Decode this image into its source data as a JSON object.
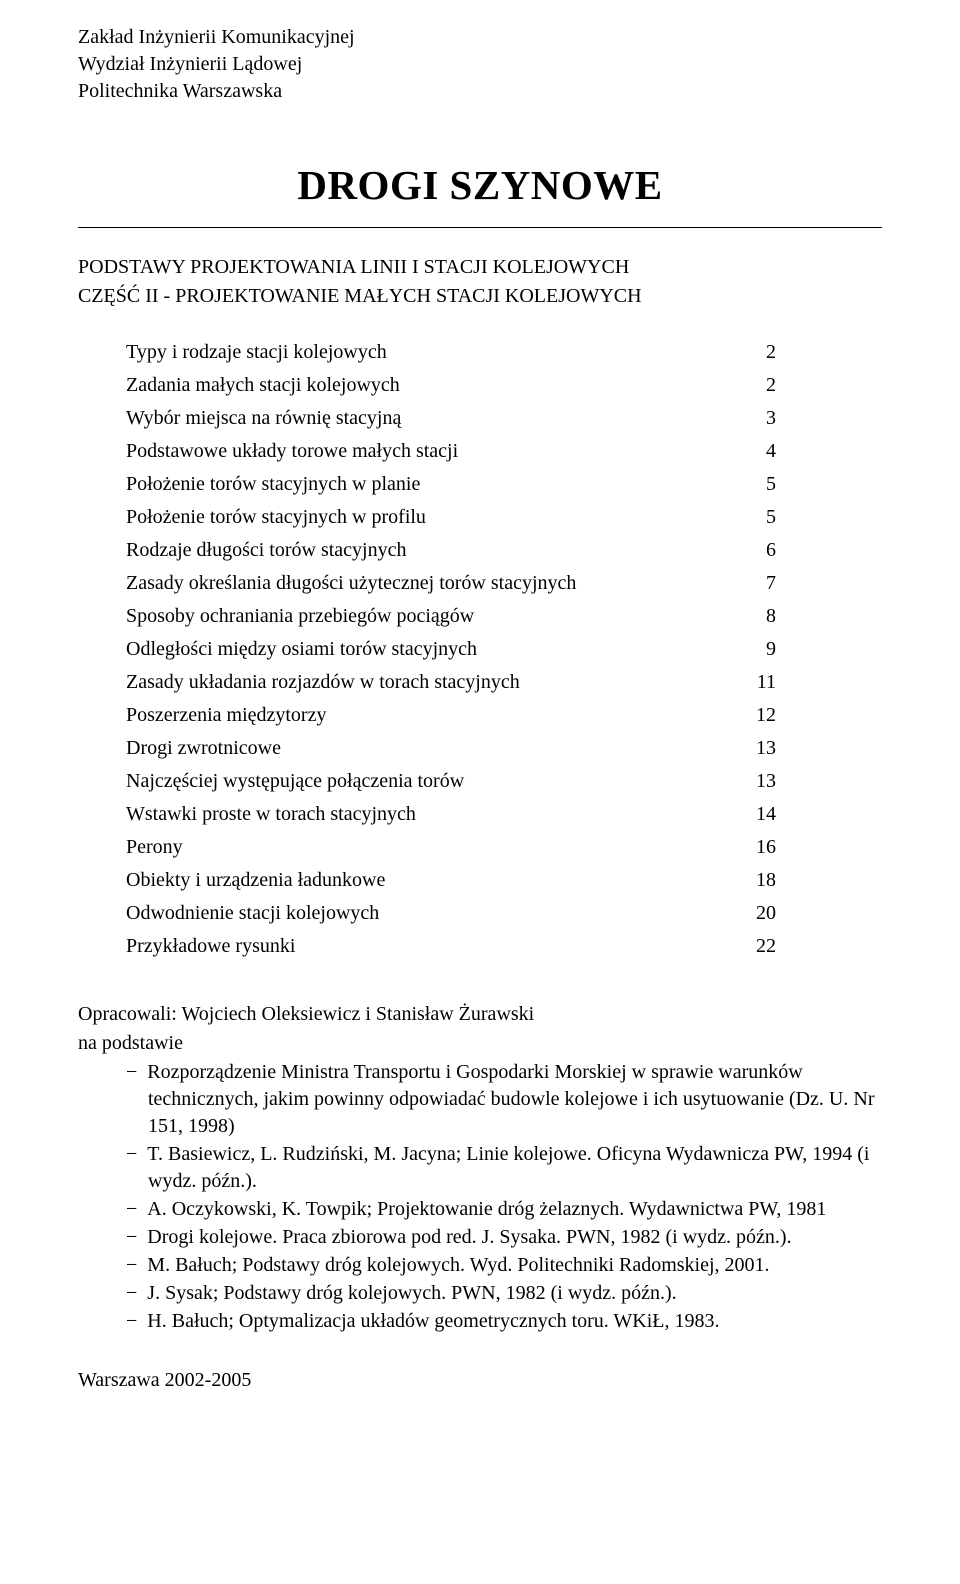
{
  "header": {
    "line1": "Zakład Inżynierii Komunikacyjnej",
    "line2": "Wydział Inżynierii Lądowej",
    "line3": "Politechnika Warszawska"
  },
  "title": "DROGI SZYNOWE",
  "subtitle1": "PODSTAWY PROJEKTOWANIA LINII I STACJI KOLEJOWYCH",
  "subtitle2": "CZĘŚĆ II - PROJEKTOWANIE MAŁYCH STACJI KOLEJOWYCH",
  "toc": [
    {
      "label": "Typy i rodzaje stacji kolejowych",
      "page": "2"
    },
    {
      "label": "Zadania małych stacji kolejowych",
      "page": "2"
    },
    {
      "label": "Wybór miejsca na równię stacyjną",
      "page": "3"
    },
    {
      "label": "Podstawowe układy torowe małych stacji",
      "page": "4"
    },
    {
      "label": "Położenie torów stacyjnych w planie",
      "page": "5"
    },
    {
      "label": "Położenie torów stacyjnych w profilu",
      "page": "5"
    },
    {
      "label": "Rodzaje długości torów stacyjnych",
      "page": "6"
    },
    {
      "label": "Zasady określania długości użytecznej torów stacyjnych",
      "page": "7"
    },
    {
      "label": "Sposoby ochraniania przebiegów pociągów",
      "page": "8"
    },
    {
      "label": "Odległości między osiami torów stacyjnych",
      "page": "9"
    },
    {
      "label": "Zasady układania rozjazdów w torach stacyjnych",
      "page": "11"
    },
    {
      "label": "Poszerzenia międzytorzy",
      "page": "12"
    },
    {
      "label": "Drogi zwrotnicowe",
      "page": "13"
    },
    {
      "label": "Najczęściej występujące połączenia torów",
      "page": "13"
    },
    {
      "label": "Wstawki proste w torach stacyjnych",
      "page": "14"
    },
    {
      "label": "Perony",
      "page": "16"
    },
    {
      "label": "Obiekty i urządzenia ładunkowe",
      "page": "18"
    },
    {
      "label": "Odwodnienie stacji kolejowych",
      "page": "20"
    },
    {
      "label": "Przykładowe rysunki",
      "page": "22"
    }
  ],
  "authors": "Opracowali: Wojciech Oleksiewicz i Stanisław Żurawski",
  "basis": "na podstawie",
  "references": [
    "Rozporządzenie Ministra Transportu i Gospodarki Morskiej w sprawie warunków technicznych, jakim powinny odpowiadać budowle kolejowe i ich usytuowanie (Dz. U. Nr 151, 1998)",
    "T. Basiewicz, L. Rudziński, M. Jacyna; Linie kolejowe. Oficyna Wydawnicza PW, 1994 (i wydz. późn.).",
    "A. Oczykowski, K. Towpik; Projektowanie dróg żelaznych. Wydawnictwa PW, 1981",
    "Drogi kolejowe. Praca zbiorowa pod red. J. Sysaka. PWN, 1982 (i wydz. późn.).",
    "M. Bałuch; Podstawy dróg kolejowych. Wyd. Politechniki Radomskiej, 2001.",
    "J. Sysak; Podstawy dróg kolejowych. PWN, 1982 (i wydz. późn.).",
    "H. Bałuch; Optymalizacja układów geometrycznych toru. WKiŁ, 1983."
  ],
  "footer": "Warszawa 2002-2005"
}
